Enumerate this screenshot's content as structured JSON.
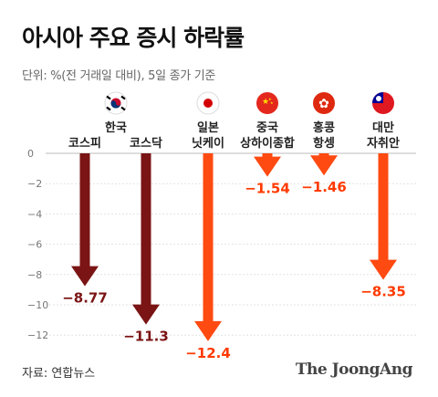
{
  "title": "아시아 주요 증시 하락률",
  "subtitle": "단위: %(전 거래일 대비), 5일 종가 기준",
  "source": "자료: 연합뉴스",
  "logo": "The JoongAng",
  "colors": {
    "korea": "#7b1414",
    "others": "#ff4a12",
    "value_korea": "#7b1414",
    "value_others": "#ff3a00"
  },
  "groups": [
    {
      "country": "한국",
      "flag": "south-korea-flag",
      "members": [
        "코스피",
        "코스닥"
      ]
    },
    {
      "country": "",
      "flag": "japan-flag",
      "members": [
        "일본 닛케이"
      ]
    },
    {
      "country": "",
      "flag": "china-flag",
      "members": [
        "중국 상하이종합"
      ]
    },
    {
      "country": "",
      "flag": "hong-kong-flag",
      "members": [
        "홍콩 항셍"
      ]
    },
    {
      "country": "",
      "flag": "taiwan-flag",
      "members": [
        "대만 자취안"
      ]
    }
  ],
  "chart_data": {
    "type": "bar",
    "orientation": "vertical-downward-arrows",
    "categories": [
      "코스피",
      "코스닥",
      "일본 닛케이",
      "중국 상하이종합",
      "홍콩 항셍",
      "대만 자취안"
    ],
    "category_labels": [
      [
        "코스피"
      ],
      [
        "코스닥"
      ],
      [
        "일본",
        "닛케이"
      ],
      [
        "중국",
        "상하이종합"
      ],
      [
        "홍콩",
        "항셍"
      ],
      [
        "대만",
        "자취안"
      ]
    ],
    "values": [
      -8.77,
      -11.3,
      -12.4,
      -1.54,
      -1.46,
      -8.35
    ],
    "value_labels": [
      "−8.77",
      "−11.3",
      "−12.4",
      "−1.54",
      "−1.46",
      "−8.35"
    ],
    "series_colors": [
      "#7b1414",
      "#7b1414",
      "#ff4a12",
      "#ff4a12",
      "#ff4a12",
      "#ff4a12"
    ],
    "ylim": [
      -13,
      0
    ],
    "yticks": [
      0,
      -2,
      -4,
      -6,
      -8,
      -10,
      -12
    ],
    "ytick_labels": [
      "0",
      "−2",
      "−4",
      "−6",
      "−8",
      "−10",
      "−12"
    ],
    "grid": true
  }
}
